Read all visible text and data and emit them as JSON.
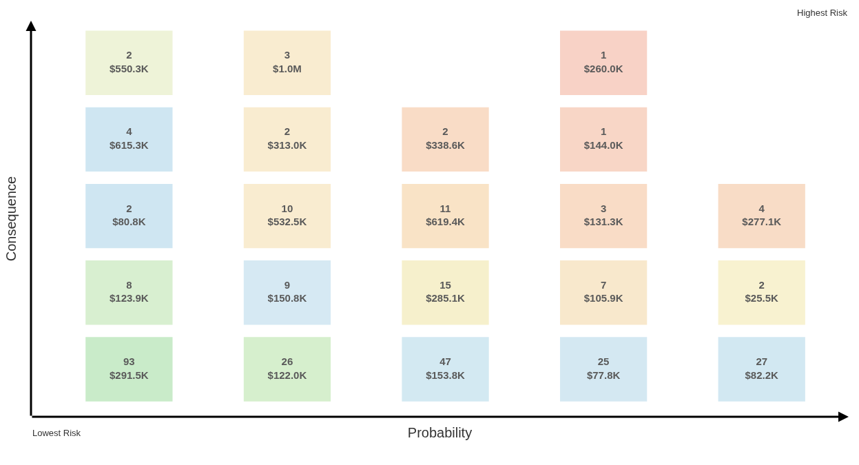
{
  "chart_data": {
    "type": "heatmap",
    "categories": [
      null,
      null,
      null,
      null,
      null
    ],
    "y_categories": [
      null,
      null,
      null,
      null,
      null
    ],
    "cells": [
      [
        2,
        3,
        null,
        1,
        null
      ],
      [
        4,
        2,
        2,
        1,
        null
      ],
      [
        2,
        10,
        11,
        3,
        4
      ],
      [
        8,
        9,
        15,
        7,
        2
      ],
      [
        93,
        26,
        47,
        25,
        27
      ]
    ],
    "colors": [
      [
        "#eef3d8",
        "#f9ecd0",
        null,
        "#f8d2c6",
        null
      ],
      [
        "#cfe6f2",
        "#f9ecd0",
        "#f9dcc6",
        "#f8d6c6",
        null
      ],
      [
        "#cfe6f2",
        "#f9ecd0",
        "#f9e3c6",
        "#f9dcc6",
        "#f8dcc6"
      ],
      [
        "#d8efd0",
        "#d6e9f3",
        "#f6f0cc",
        "#f8e8cc",
        "#f8f2d0"
      ],
      [
        "#c9ebc9",
        "#d6efcd",
        "#d3e9f2",
        "#d4e8f2",
        "#d2e8f2"
      ]
    ],
    "data_labels": true,
    "xlabel": "Probability",
    "ylabel": "Consequence",
    "annotations": [
      "Highest Risk",
      "Lowest Risk",
      "$550.3K",
      "$1.0M",
      "$260.0K",
      "$615.3K",
      "$313.0K",
      "$338.6K",
      "$144.0K",
      "$80.8K",
      "$532.5K",
      "$619.4K",
      "$131.3K",
      "$277.1K",
      "$123.9K",
      "$150.8K",
      "$285.1K",
      "$105.9K",
      "$25.5K",
      "$291.5K",
      "$122.0K",
      "$153.8K",
      "$77.8K",
      "$82.2K"
    ],
    "tick_labels": false
  }
}
